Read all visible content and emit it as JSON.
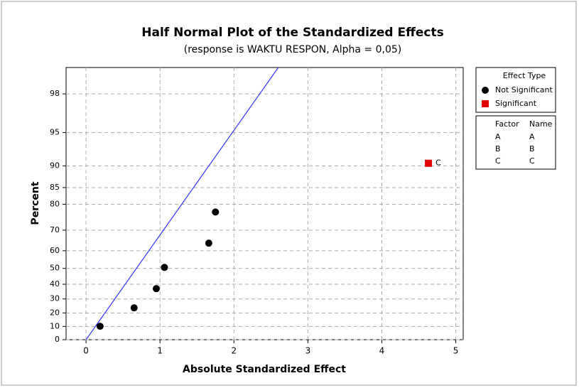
{
  "chart_data": {
    "type": "scatter",
    "title": "Half Normal Plot of the Standardized Effects",
    "subtitle": "(response is WAKTU RESPON, Alpha = 0,05)",
    "x_label": "Absolute Standardized Effect",
    "y_label": "Percent",
    "xlim": [
      -0.27,
      5.1
    ],
    "xticks": [
      0,
      1,
      2,
      3,
      4,
      5
    ],
    "ylim": [
      0,
      99
    ],
    "yticks": [
      0,
      10,
      20,
      30,
      40,
      50,
      60,
      70,
      80,
      85,
      90,
      95,
      98
    ],
    "yscale": "half-normal",
    "grid": true,
    "legend_title": "Effect Type",
    "series": [
      {
        "name": "Not Significant",
        "color": "#000000",
        "marker": "circle",
        "x": [
          0.19,
          0.65,
          0.95,
          1.06,
          1.66,
          1.75
        ],
        "values": [
          10.1,
          23.7,
          37.1,
          50.6,
          63.9,
          77.3
        ]
      },
      {
        "name": "Significant",
        "color": "#e00000",
        "marker": "square",
        "x": [
          4.63
        ],
        "values": [
          90.5
        ],
        "point_labels": [
          "C"
        ]
      }
    ],
    "fit_line": {
      "color": "#3333ff",
      "x": [
        0,
        2.6
      ],
      "y": [
        0,
        99
      ]
    },
    "factor_table": {
      "headers": [
        "Factor",
        "Name"
      ],
      "rows": [
        [
          "A",
          "A"
        ],
        [
          "B",
          "B"
        ],
        [
          "C",
          "C"
        ]
      ]
    }
  }
}
